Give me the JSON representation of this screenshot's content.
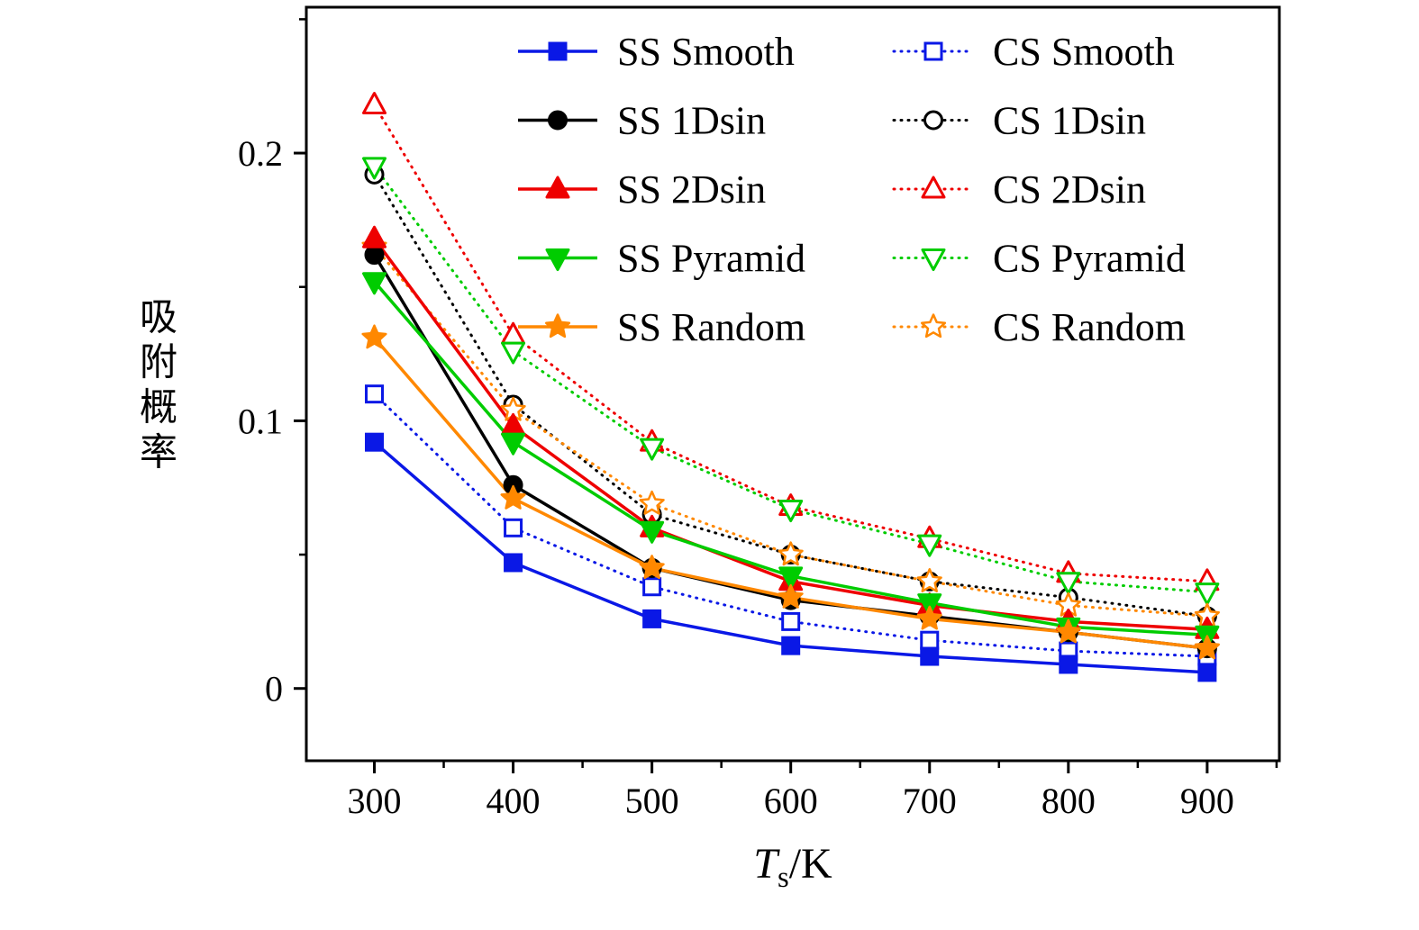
{
  "chart_data": {
    "type": "line",
    "title": "",
    "xlabel": {
      "var": "T",
      "sub": "s",
      "unit": "/K"
    },
    "ylabel": "吸附概率",
    "x": [
      300,
      400,
      500,
      600,
      700,
      800,
      900
    ],
    "xticks": [
      300,
      400,
      500,
      600,
      700,
      800,
      900
    ],
    "yticks": [
      0,
      0.1,
      0.2
    ],
    "yticklabels": [
      "0",
      "0.1",
      "0.2"
    ],
    "xlim": [
      251,
      952
    ],
    "ylim": [
      -0.027,
      0.2545
    ],
    "grid": false,
    "legend_position": "top-inside-two-columns",
    "series": [
      {
        "name": "SS Smooth",
        "color": "#0a18e6",
        "marker": "square",
        "filled": true,
        "line": "solid",
        "values": [
          0.092,
          0.047,
          0.026,
          0.016,
          0.012,
          0.009,
          0.006
        ]
      },
      {
        "name": "SS 1Dsin",
        "color": "#000000",
        "marker": "circle",
        "filled": true,
        "line": "solid",
        "values": [
          0.162,
          0.076,
          0.045,
          0.033,
          0.027,
          0.021,
          0.015
        ]
      },
      {
        "name": "SS 2Dsin",
        "color": "#ee0000",
        "marker": "triangle-up",
        "filled": true,
        "line": "solid",
        "values": [
          0.168,
          0.098,
          0.06,
          0.04,
          0.031,
          0.025,
          0.022
        ]
      },
      {
        "name": "SS Pyramid",
        "color": "#00cc00",
        "marker": "triangle-down",
        "filled": true,
        "line": "solid",
        "values": [
          0.152,
          0.092,
          0.059,
          0.042,
          0.032,
          0.023,
          0.02
        ]
      },
      {
        "name": "SS Random",
        "color": "#ff8800",
        "marker": "star",
        "filled": true,
        "line": "solid",
        "values": [
          0.131,
          0.071,
          0.045,
          0.034,
          0.026,
          0.021,
          0.015
        ]
      },
      {
        "name": "CS Smooth",
        "color": "#0a18e6",
        "marker": "square",
        "filled": false,
        "line": "dotted",
        "values": [
          0.11,
          0.06,
          0.038,
          0.025,
          0.018,
          0.014,
          0.012
        ]
      },
      {
        "name": "CS 1Dsin",
        "color": "#000000",
        "marker": "circle",
        "filled": false,
        "line": "dotted",
        "values": [
          0.192,
          0.106,
          0.065,
          0.05,
          0.04,
          0.034,
          0.027
        ]
      },
      {
        "name": "CS 2Dsin",
        "color": "#ee0000",
        "marker": "triangle-up",
        "filled": false,
        "line": "dotted",
        "values": [
          0.218,
          0.132,
          0.092,
          0.068,
          0.056,
          0.043,
          0.04
        ]
      },
      {
        "name": "CS Pyramid",
        "color": "#00cc00",
        "marker": "triangle-down",
        "filled": false,
        "line": "dotted",
        "values": [
          0.195,
          0.126,
          0.09,
          0.067,
          0.054,
          0.04,
          0.036
        ]
      },
      {
        "name": "CS Random",
        "color": "#ff8800",
        "marker": "star",
        "filled": false,
        "line": "dotted",
        "values": [
          0.165,
          0.104,
          0.069,
          0.05,
          0.04,
          0.031,
          0.027
        ]
      }
    ]
  }
}
